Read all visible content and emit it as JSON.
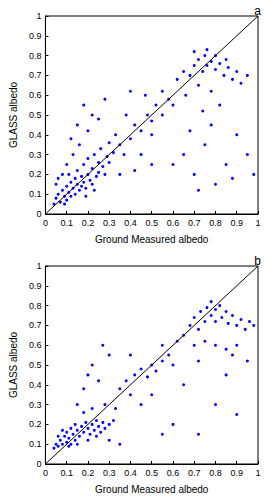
{
  "chart_data": [
    {
      "type": "scatter",
      "title": "a",
      "x_label": "Ground Measured albedo",
      "y_label": "GLASS albedo",
      "xlim": [
        0,
        1
      ],
      "ylim": [
        0,
        1
      ],
      "xticks": [
        0,
        0.1,
        0.2,
        0.3,
        0.4,
        0.5,
        0.6,
        0.7,
        0.8,
        0.9,
        1
      ],
      "yticks": [
        0,
        0.1,
        0.2,
        0.3,
        0.4,
        0.5,
        0.6,
        0.7,
        0.8,
        0.9,
        1
      ],
      "grid": false,
      "series": [
        {
          "type": "scatter",
          "color": "#0000ff",
          "marker": "point",
          "x": [
            0.05,
            0.06,
            0.07,
            0.08,
            0.09,
            0.1,
            0.1,
            0.11,
            0.12,
            0.12,
            0.13,
            0.14,
            0.14,
            0.15,
            0.15,
            0.16,
            0.17,
            0.17,
            0.18,
            0.18,
            0.19,
            0.2,
            0.2,
            0.21,
            0.22,
            0.22,
            0.23,
            0.24,
            0.25,
            0.25,
            0.26,
            0.27,
            0.28,
            0.29,
            0.3,
            0.3,
            0.32,
            0.33,
            0.35,
            0.37,
            0.04,
            0.08,
            0.1,
            0.13,
            0.16,
            0.2,
            0.15,
            0.22,
            0.12,
            0.18,
            0.25,
            0.28,
            0.05,
            0.06,
            0.09,
            0.11,
            0.19,
            0.23,
            0.4,
            0.42,
            0.45,
            0.48,
            0.5,
            0.52,
            0.55,
            0.38,
            0.4,
            0.45,
            0.5,
            0.47,
            0.55,
            0.58,
            0.6,
            0.35,
            0.42,
            0.5,
            0.62,
            0.65,
            0.68,
            0.7,
            0.72,
            0.74,
            0.75,
            0.76,
            0.78,
            0.8,
            0.8,
            0.82,
            0.84,
            0.85,
            0.86,
            0.88,
            0.9,
            0.92,
            0.72,
            0.78,
            0.66,
            0.7,
            0.76,
            0.95,
            0.82,
            0.74,
            0.65,
            0.7,
            0.75,
            0.8,
            0.85,
            0.9,
            0.72,
            0.88,
            0.6,
            0.95,
            0.78,
            0.68,
            0.98
          ],
          "values": [
            0.08,
            0.1,
            0.06,
            0.12,
            0.09,
            0.14,
            0.07,
            0.11,
            0.16,
            0.09,
            0.13,
            0.18,
            0.1,
            0.15,
            0.22,
            0.12,
            0.19,
            0.14,
            0.25,
            0.16,
            0.13,
            0.2,
            0.28,
            0.17,
            0.23,
            0.15,
            0.3,
            0.19,
            0.26,
            0.21,
            0.33,
            0.24,
            0.2,
            0.29,
            0.36,
            0.26,
            0.31,
            0.4,
            0.35,
            0.3,
            0.05,
            0.2,
            0.25,
            0.3,
            0.35,
            0.42,
            0.45,
            0.5,
            0.38,
            0.55,
            0.48,
            0.58,
            0.15,
            0.18,
            0.05,
            0.2,
            0.09,
            0.12,
            0.38,
            0.45,
            0.42,
            0.5,
            0.47,
            0.55,
            0.5,
            0.5,
            0.62,
            0.3,
            0.25,
            0.6,
            0.62,
            0.58,
            0.55,
            0.2,
            0.22,
            0.4,
            0.68,
            0.72,
            0.7,
            0.75,
            0.78,
            0.72,
            0.8,
            0.75,
            0.77,
            0.73,
            0.8,
            0.76,
            0.7,
            0.78,
            0.74,
            0.68,
            0.72,
            0.66,
            0.65,
            0.62,
            0.6,
            0.82,
            0.83,
            0.7,
            0.55,
            0.52,
            0.3,
            0.2,
            0.35,
            0.15,
            0.25,
            0.4,
            0.12,
            0.18,
            0.25,
            0.3,
            0.45,
            0.42,
            0.2
          ]
        },
        {
          "type": "line",
          "color": "#000000",
          "line_style": "solid",
          "x": [
            0,
            1
          ],
          "values": [
            0,
            1
          ]
        }
      ]
    },
    {
      "type": "scatter",
      "title": "b",
      "x_label": "Ground Measured albedo",
      "y_label": "GLASS albedo",
      "xlim": [
        0,
        1
      ],
      "ylim": [
        0,
        1
      ],
      "xticks": [
        0,
        0.1,
        0.2,
        0.3,
        0.4,
        0.5,
        0.6,
        0.7,
        0.8,
        0.9,
        1
      ],
      "yticks": [
        0,
        0.1,
        0.2,
        0.3,
        0.4,
        0.5,
        0.6,
        0.7,
        0.8,
        0.9,
        1
      ],
      "grid": false,
      "series": [
        {
          "type": "scatter",
          "color": "#0000ff",
          "marker": "point",
          "x": [
            0.04,
            0.05,
            0.06,
            0.07,
            0.08,
            0.09,
            0.1,
            0.1,
            0.11,
            0.12,
            0.12,
            0.13,
            0.14,
            0.14,
            0.15,
            0.16,
            0.17,
            0.18,
            0.19,
            0.2,
            0.21,
            0.22,
            0.23,
            0.24,
            0.25,
            0.26,
            0.27,
            0.28,
            0.3,
            0.06,
            0.08,
            0.11,
            0.15,
            0.2,
            0.24,
            0.32,
            0.18,
            0.22,
            0.15,
            0.28,
            0.2,
            0.22,
            0.25,
            0.18,
            0.3,
            0.27,
            0.35,
            0.38,
            0.4,
            0.42,
            0.45,
            0.48,
            0.5,
            0.52,
            0.55,
            0.58,
            0.6,
            0.45,
            0.5,
            0.62,
            0.55,
            0.4,
            0.33,
            0.3,
            0.35,
            0.65,
            0.68,
            0.7,
            0.72,
            0.73,
            0.75,
            0.76,
            0.78,
            0.8,
            0.8,
            0.82,
            0.83,
            0.85,
            0.86,
            0.88,
            0.9,
            0.92,
            0.94,
            0.96,
            0.98,
            0.7,
            0.75,
            0.8,
            0.85,
            0.9,
            0.95,
            0.78,
            0.72,
            0.88,
            0.6,
            0.72,
            0.8,
            0.9,
            0.65,
            0.85,
            0.55
          ],
          "values": [
            0.08,
            0.1,
            0.09,
            0.12,
            0.1,
            0.14,
            0.11,
            0.16,
            0.13,
            0.1,
            0.18,
            0.15,
            0.12,
            0.2,
            0.17,
            0.14,
            0.19,
            0.16,
            0.21,
            0.18,
            0.15,
            0.2,
            0.17,
            0.22,
            0.19,
            0.16,
            0.21,
            0.18,
            0.2,
            0.14,
            0.17,
            0.09,
            0.1,
            0.12,
            0.14,
            0.22,
            0.26,
            0.28,
            0.3,
            0.3,
            0.45,
            0.5,
            0.42,
            0.38,
            0.55,
            0.6,
            0.38,
            0.42,
            0.35,
            0.45,
            0.48,
            0.44,
            0.5,
            0.47,
            0.52,
            0.55,
            0.5,
            0.3,
            0.35,
            0.62,
            0.6,
            0.55,
            0.28,
            0.12,
            0.1,
            0.65,
            0.7,
            0.74,
            0.68,
            0.77,
            0.72,
            0.79,
            0.75,
            0.78,
            0.72,
            0.8,
            0.74,
            0.77,
            0.71,
            0.75,
            0.7,
            0.73,
            0.68,
            0.72,
            0.7,
            0.6,
            0.62,
            0.6,
            0.58,
            0.6,
            0.52,
            0.82,
            0.52,
            0.55,
            0.2,
            0.15,
            0.3,
            0.25,
            0.4,
            0.45,
            0.15
          ]
        },
        {
          "type": "line",
          "color": "#000000",
          "line_style": "solid",
          "x": [
            0,
            1
          ],
          "values": [
            0,
            1
          ]
        }
      ]
    }
  ]
}
